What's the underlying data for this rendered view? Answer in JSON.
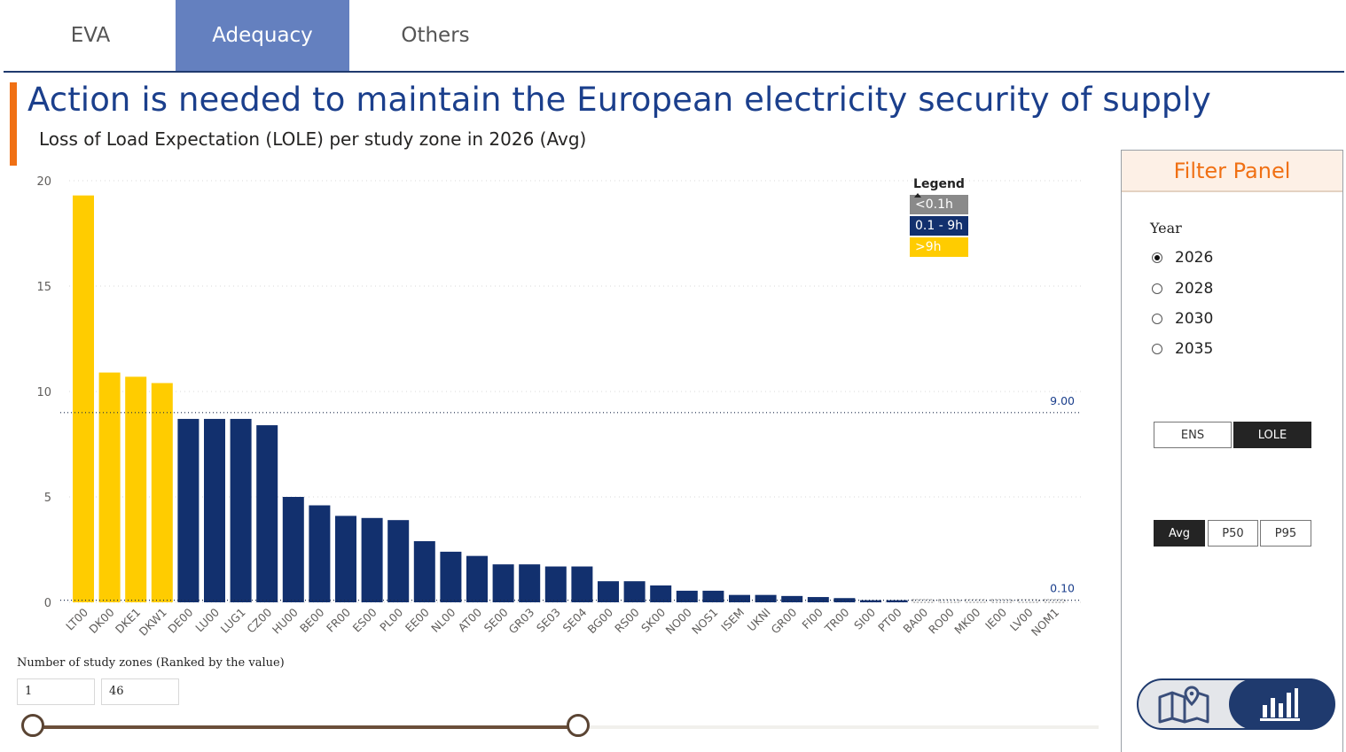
{
  "tabs": [
    {
      "label": "EVA",
      "active": false
    },
    {
      "label": "Adequacy",
      "active": true
    },
    {
      "label": "Others",
      "active": false
    }
  ],
  "header": {
    "title": "Action is needed to maintain the European electricity security of supply",
    "subtitle": "Loss of Load Expectation (LOLE) per study zone in 2026 (Avg)"
  },
  "legend": {
    "title": "Legend",
    "items": [
      {
        "label": "<0.1h",
        "color": "#8a8a8a"
      },
      {
        "label": "0.1 - 9h",
        "color": "#12306e"
      },
      {
        "label": ">9h",
        "color": "#ffcc00"
      }
    ]
  },
  "chart_data": {
    "type": "bar",
    "categories": [
      "LT00",
      "DK00",
      "DKE1",
      "DKW1",
      "DE00",
      "LU00",
      "LUG1",
      "CZ00",
      "HU00",
      "BE00",
      "FR00",
      "ES00",
      "PL00",
      "EE00",
      "NL00",
      "AT00",
      "SE00",
      "GR03",
      "SE03",
      "SE04",
      "BG00",
      "RS00",
      "SK00",
      "NO00",
      "NOS1",
      "ISEM",
      "UKNI",
      "GR00",
      "FI00",
      "TR00",
      "SI00",
      "PT00",
      "BA00",
      "RO00",
      "MK00",
      "IE00",
      "LV00",
      "NOM1"
    ],
    "values": [
      19.3,
      10.9,
      10.7,
      10.4,
      8.7,
      8.7,
      8.7,
      8.4,
      5.0,
      4.6,
      4.1,
      4.0,
      3.9,
      2.9,
      2.4,
      2.2,
      1.8,
      1.8,
      1.7,
      1.7,
      1.0,
      1.0,
      0.8,
      0.55,
      0.55,
      0.35,
      0.35,
      0.3,
      0.25,
      0.2,
      0.1,
      0.1,
      0.05,
      0.05,
      0.05,
      0.05,
      0.05,
      0.05
    ],
    "ylim": [
      0,
      20
    ],
    "yticks": [
      0,
      5,
      10,
      15,
      20
    ],
    "reference_lines": [
      {
        "value": 9.0,
        "label": "9.00"
      },
      {
        "value": 0.1,
        "label": "0.10"
      }
    ],
    "colors": {
      "low": "#8a8a8a",
      "mid": "#12306e",
      "high": "#ffcc00"
    },
    "grid": true,
    "legend_position": "top-right"
  },
  "slider": {
    "label": "Number of study zones (Ranked by the value)",
    "min_value": "1",
    "max_value": "46",
    "selected_fraction": 0.52
  },
  "filter_panel": {
    "title": "Filter Panel",
    "year_label": "Year",
    "years": [
      {
        "label": "2026",
        "selected": true
      },
      {
        "label": "2028",
        "selected": false
      },
      {
        "label": "2030",
        "selected": false
      },
      {
        "label": "2035",
        "selected": false
      }
    ],
    "metric_buttons": [
      {
        "label": "ENS",
        "selected": false
      },
      {
        "label": "LOLE",
        "selected": true
      }
    ],
    "stat_buttons": [
      {
        "label": "Avg",
        "selected": true
      },
      {
        "label": "P50",
        "selected": false
      },
      {
        "label": "P95",
        "selected": false
      }
    ],
    "view_toggle": {
      "left_icon": "map-icon",
      "right_icon": "bar-chart-icon",
      "active": "bar-chart-icon"
    }
  }
}
